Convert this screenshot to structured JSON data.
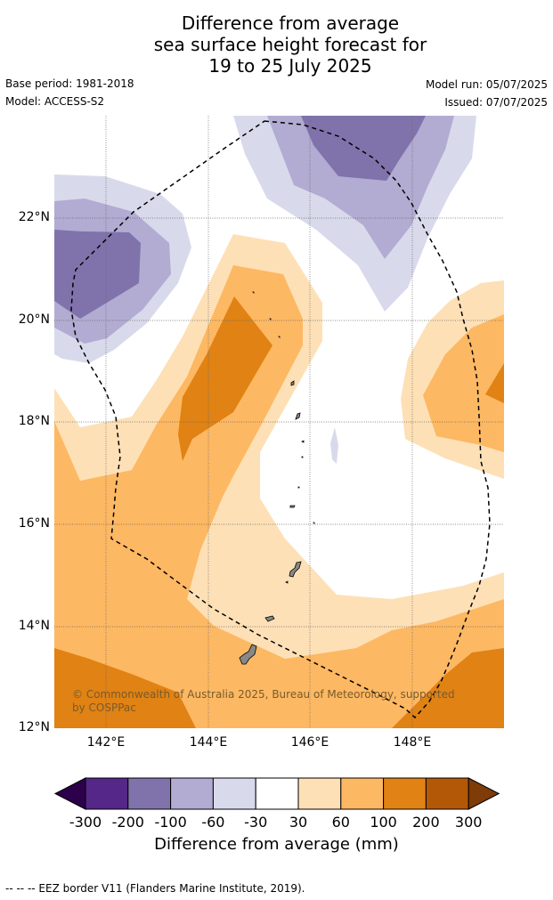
{
  "title": {
    "line1": "Difference from average",
    "line2": "sea surface height forecast for",
    "line3": "19 to 25 July 2025"
  },
  "meta": {
    "base_period": "Base period: 1981-2018",
    "model": "Model: ACCESS-S2",
    "model_run": "Model run: 05/07/2025",
    "issued": "Issued: 07/07/2025"
  },
  "map": {
    "lat_labels": [
      "22°N",
      "20°N",
      "18°N",
      "16°N",
      "14°N",
      "12°N"
    ],
    "lon_labels": [
      "142°E",
      "144°E",
      "146°E",
      "148°E"
    ],
    "copyright_line1": "© Commonwealth of Australia 2025, Bureau of Meteorology, supported",
    "copyright_line2": "by COSPPac"
  },
  "legend": {
    "tick_labels": [
      "-300",
      "-200",
      "-100",
      "-60",
      "-30",
      "30",
      "60",
      "100",
      "200",
      "300"
    ],
    "colors": [
      "#2d004b",
      "#542788",
      "#8073ac",
      "#b2abd2",
      "#d8daeb",
      "#ffffff",
      "#fee0b6",
      "#fdb863",
      "#e08214",
      "#b35806",
      "#7f3b08"
    ],
    "title": "Difference from average (mm)"
  },
  "footnote": "--  --  -- EEZ border V11 (Flanders Marine Institute, 2019)."
}
